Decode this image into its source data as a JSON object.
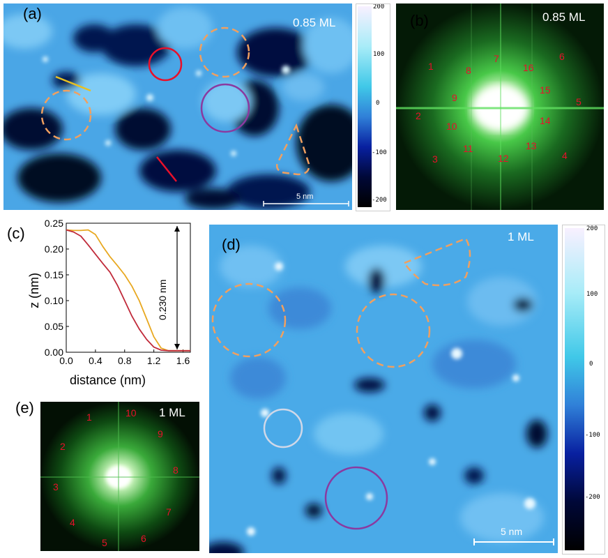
{
  "panel_a": {
    "label": "(a)",
    "coverage": "0.85 ML",
    "scalebar": "5 nm"
  },
  "panel_b": {
    "label": "(b)",
    "coverage": "0.85 ML",
    "spots": [
      "1",
      "2",
      "3",
      "4",
      "5",
      "6",
      "7",
      "8",
      "9",
      "10",
      "11",
      "12",
      "13",
      "14",
      "15",
      "16"
    ]
  },
  "colorbar_top": {
    "ticks": [
      "200",
      "100",
      "0",
      "-100",
      "-200"
    ]
  },
  "panel_c": {
    "label": "(c)",
    "chart_data": {
      "type": "line",
      "xlabel": "distance (nm)",
      "ylabel": "z (nm)",
      "xlim": [
        0,
        1.7
      ],
      "ylim": [
        0,
        0.25
      ],
      "xticks": [
        "0.0",
        "0.4",
        "0.8",
        "1.2",
        "1.6"
      ],
      "yticks": [
        "0.00",
        "0.05",
        "0.10",
        "0.15",
        "0.20",
        "0.25"
      ],
      "annotation": "0.230 nm",
      "series": [
        {
          "color": "#e8a820",
          "x": [
            0,
            0.1,
            0.2,
            0.3,
            0.4,
            0.5,
            0.6,
            0.7,
            0.8,
            0.9,
            1.0,
            1.1,
            1.2,
            1.3,
            1.4,
            1.5,
            1.6,
            1.7
          ],
          "y": [
            0.237,
            0.236,
            0.236,
            0.237,
            0.228,
            0.205,
            0.185,
            0.168,
            0.15,
            0.128,
            0.1,
            0.065,
            0.03,
            0.008,
            0.003,
            0.003,
            0.003,
            0.003
          ]
        },
        {
          "color": "#c02a3a",
          "x": [
            0,
            0.1,
            0.2,
            0.3,
            0.4,
            0.5,
            0.6,
            0.7,
            0.8,
            0.9,
            1.0,
            1.1,
            1.2,
            1.3,
            1.4,
            1.5,
            1.6,
            1.7
          ],
          "y": [
            0.237,
            0.233,
            0.225,
            0.208,
            0.19,
            0.172,
            0.155,
            0.13,
            0.1,
            0.07,
            0.045,
            0.025,
            0.01,
            0.004,
            0.003,
            0.003,
            0.003,
            0.003
          ]
        }
      ]
    }
  },
  "panel_d": {
    "label": "(d)",
    "coverage": "1 ML",
    "scalebar": "5 nm"
  },
  "colorbar_bottom": {
    "ticks": [
      "200",
      "100",
      "0",
      "-100",
      "-200"
    ]
  },
  "panel_e": {
    "label": "(e)",
    "coverage": "1 ML",
    "spots": [
      "1",
      "2",
      "3",
      "4",
      "5",
      "6",
      "7",
      "8",
      "9",
      "10"
    ]
  },
  "colors": {
    "stm_light": "#58b8f0",
    "stm_dark": "#001040",
    "fft": "#2a9a3a",
    "orange_dash": "#f0a060",
    "red": "#e8102a",
    "purple": "#8a3aa0",
    "yellow": "#e8c020"
  }
}
